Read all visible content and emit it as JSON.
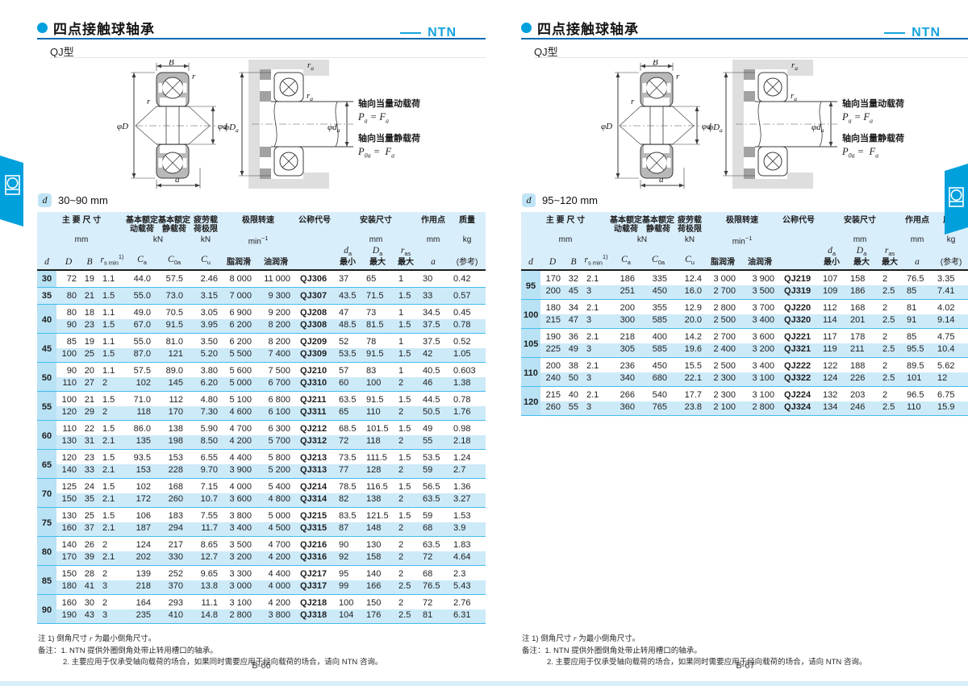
{
  "brand": "NTN",
  "shared": {
    "title": "四点接触球轴承",
    "subtitle": "QJ型",
    "load": {
      "dyn_title": "轴向当量动载荷",
      "stat_title": "轴向当量静载荷",
      "p": "P",
      "f": "F",
      "eq": "=",
      "a_sub": "a",
      "zero_a_sub": "0a"
    },
    "fig_labels": {
      "width": "B",
      "radius": "r",
      "outer": "φD",
      "bore": "φd",
      "action": "a",
      "ra_base": "r",
      "Da_base": "φD",
      "da_base": "φd",
      "sub_a": "a"
    },
    "d_badge": "d",
    "header": {
      "main_dims": "主 要 尺 寸",
      "dyn1": "基本额定",
      "dyn2": "动载荷",
      "stat1": "基本额定",
      "stat2": "静载荷",
      "fat1": "疲劳载",
      "fat2": "荷极限",
      "speed": "极限转速",
      "code": "公称代号",
      "mount": "安装尺寸",
      "point": "作用点",
      "mass": "质量",
      "mm": "mm",
      "kn": "kN",
      "kg": "kg",
      "min_base": "min",
      "min_sup": "−1",
      "grease": "脂润滑",
      "oil": "油润滑",
      "min": "最小",
      "max": "最大",
      "ref": "(参考)",
      "sym": {
        "d": "d",
        "D": "D",
        "B": "B",
        "r": "r",
        "smin": "s min",
        "sup1": "1)",
        "C": "C",
        "a": "a",
        "oa": "0a",
        "u": "u",
        "as": "as"
      }
    },
    "notes": {
      "note1_pre": "注 1) 倒角尺寸 ",
      "note1_sym": "r",
      "note1_post": " 为最小倒角尺寸。",
      "remark1": "备注：1. NTN 提供外圈倒角处带止转用槽口的轴承。",
      "remark2": "2. 主要应用于仅承受轴向载荷的场合，如果同时需要应用于经向载荷的场合，请向 NTN 咨询。"
    }
  },
  "pages": [
    {
      "range": "30~90 mm",
      "page_number": "B-66",
      "groups": [
        {
          "d": "30",
          "rows": [
            [
              "72",
              "19",
              "1.1",
              "44.0",
              "57.5",
              "2.46",
              "8 000",
              "11 000",
              "QJ306",
              "37",
              "65",
              "1",
              "30",
              "0.42"
            ]
          ]
        },
        {
          "d": "35",
          "rows": [
            [
              "80",
              "21",
              "1.5",
              "55.0",
              "73.0",
              "3.15",
              "7 000",
              "9 300",
              "QJ307",
              "43.5",
              "71.5",
              "1.5",
              "33",
              "0.57"
            ]
          ]
        },
        {
          "d": "40",
          "rows": [
            [
              "80",
              "18",
              "1.1",
              "49.0",
              "70.5",
              "3.05",
              "6 900",
              "9 200",
              "QJ208",
              "47",
              "73",
              "1",
              "34.5",
              "0.45"
            ],
            [
              "90",
              "23",
              "1.5",
              "67.0",
              "91.5",
              "3.95",
              "6 200",
              "8 200",
              "QJ308",
              "48.5",
              "81.5",
              "1.5",
              "37.5",
              "0.78"
            ]
          ]
        },
        {
          "d": "45",
          "rows": [
            [
              "85",
              "19",
              "1.1",
              "55.0",
              "81.0",
              "3.50",
              "6 200",
              "8 200",
              "QJ209",
              "52",
              "78",
              "1",
              "37.5",
              "0.52"
            ],
            [
              "100",
              "25",
              "1.5",
              "87.0",
              "121",
              "5.20",
              "5 500",
              "7 400",
              "QJ309",
              "53.5",
              "91.5",
              "1.5",
              "42",
              "1.05"
            ]
          ]
        },
        {
          "d": "50",
          "rows": [
            [
              "90",
              "20",
              "1.1",
              "57.5",
              "89.0",
              "3.80",
              "5 600",
              "7 500",
              "QJ210",
              "57",
              "83",
              "1",
              "40.5",
              "0.603"
            ],
            [
              "110",
              "27",
              "2",
              "102",
              "145",
              "6.20",
              "5 000",
              "6 700",
              "QJ310",
              "60",
              "100",
              "2",
              "46",
              "1.38"
            ]
          ]
        },
        {
          "d": "55",
          "rows": [
            [
              "100",
              "21",
              "1.5",
              "71.0",
              "112",
              "4.80",
              "5 100",
              "6 800",
              "QJ211",
              "63.5",
              "91.5",
              "1.5",
              "44.5",
              "0.78"
            ],
            [
              "120",
              "29",
              "2",
              "118",
              "170",
              "7.30",
              "4 600",
              "6 100",
              "QJ311",
              "65",
              "110",
              "2",
              "50.5",
              "1.76"
            ]
          ]
        },
        {
          "d": "60",
          "rows": [
            [
              "110",
              "22",
              "1.5",
              "86.0",
              "138",
              "5.90",
              "4 700",
              "6 300",
              "QJ212",
              "68.5",
              "101.5",
              "1.5",
              "49",
              "0.98"
            ],
            [
              "130",
              "31",
              "2.1",
              "135",
              "198",
              "8.50",
              "4 200",
              "5 700",
              "QJ312",
              "72",
              "118",
              "2",
              "55",
              "2.18"
            ]
          ]
        },
        {
          "d": "65",
          "rows": [
            [
              "120",
              "23",
              "1.5",
              "93.5",
              "153",
              "6.55",
              "4 400",
              "5 800",
              "QJ213",
              "73.5",
              "111.5",
              "1.5",
              "53.5",
              "1.24"
            ],
            [
              "140",
              "33",
              "2.1",
              "153",
              "228",
              "9.70",
              "3 900",
              "5 200",
              "QJ313",
              "77",
              "128",
              "2",
              "59",
              "2.7"
            ]
          ]
        },
        {
          "d": "70",
          "rows": [
            [
              "125",
              "24",
              "1.5",
              "102",
              "168",
              "7.15",
              "4 000",
              "5 400",
              "QJ214",
              "78.5",
              "116.5",
              "1.5",
              "56.5",
              "1.36"
            ],
            [
              "150",
              "35",
              "2.1",
              "172",
              "260",
              "10.7",
              "3 600",
              "4 800",
              "QJ314",
              "82",
              "138",
              "2",
              "63.5",
              "3.27"
            ]
          ]
        },
        {
          "d": "75",
          "rows": [
            [
              "130",
              "25",
              "1.5",
              "106",
              "183",
              "7.55",
              "3 800",
              "5 000",
              "QJ215",
              "83.5",
              "121.5",
              "1.5",
              "59",
              "1.53"
            ],
            [
              "160",
              "37",
              "2.1",
              "187",
              "294",
              "11.7",
              "3 400",
              "4 500",
              "QJ315",
              "87",
              "148",
              "2",
              "68",
              "3.9"
            ]
          ]
        },
        {
          "d": "80",
          "rows": [
            [
              "140",
              "26",
              "2",
              "124",
              "217",
              "8.65",
              "3 500",
              "4 700",
              "QJ216",
              "90",
              "130",
              "2",
              "63.5",
              "1.83"
            ],
            [
              "170",
              "39",
              "2.1",
              "202",
              "330",
              "12.7",
              "3 200",
              "4 200",
              "QJ316",
              "92",
              "158",
              "2",
              "72",
              "4.64"
            ]
          ]
        },
        {
          "d": "85",
          "rows": [
            [
              "150",
              "28",
              "2",
              "139",
              "252",
              "9.65",
              "3 300",
              "4 400",
              "QJ217",
              "95",
              "140",
              "2",
              "68",
              "2.3"
            ],
            [
              "180",
              "41",
              "3",
              "218",
              "370",
              "13.8",
              "3 000",
              "4 000",
              "QJ317",
              "99",
              "166",
              "2.5",
              "76.5",
              "5.43"
            ]
          ]
        },
        {
          "d": "90",
          "rows": [
            [
              "160",
              "30",
              "2",
              "164",
              "293",
              "11.1",
              "3 100",
              "4 200",
              "QJ218",
              "100",
              "150",
              "2",
              "72",
              "2.76"
            ],
            [
              "190",
              "43",
              "3",
              "235",
              "410",
              "14.8",
              "2 800",
              "3 800",
              "QJ318",
              "104",
              "176",
              "2.5",
              "81",
              "6.31"
            ]
          ]
        }
      ]
    },
    {
      "range": "95~120 mm",
      "page_number": "B-67",
      "groups": [
        {
          "d": "95",
          "rows": [
            [
              "170",
              "32",
              "2.1",
              "186",
              "335",
              "12.4",
              "3 000",
              "3 900",
              "QJ219",
              "107",
              "158",
              "2",
              "76.5",
              "3.35"
            ],
            [
              "200",
              "45",
              "3",
              "251",
              "450",
              "16.0",
              "2 700",
              "3 500",
              "QJ319",
              "109",
              "186",
              "2.5",
              "85",
              "7.41"
            ]
          ]
        },
        {
          "d": "100",
          "rows": [
            [
              "180",
              "34",
              "2.1",
              "200",
              "355",
              "12.9",
              "2 800",
              "3 700",
              "QJ220",
              "112",
              "168",
              "2",
              "81",
              "4.02"
            ],
            [
              "215",
              "47",
              "3",
              "300",
              "585",
              "20.0",
              "2 500",
              "3 400",
              "QJ320",
              "114",
              "201",
              "2.5",
              "91",
              "9.14"
            ]
          ]
        },
        {
          "d": "105",
          "rows": [
            [
              "190",
              "36",
              "2.1",
              "218",
              "400",
              "14.2",
              "2 700",
              "3 600",
              "QJ221",
              "117",
              "178",
              "2",
              "85",
              "4.75"
            ],
            [
              "225",
              "49",
              "3",
              "305",
              "585",
              "19.6",
              "2 400",
              "3 200",
              "QJ321",
              "119",
              "211",
              "2.5",
              "95.5",
              "10.4"
            ]
          ]
        },
        {
          "d": "110",
          "rows": [
            [
              "200",
              "38",
              "2.1",
              "236",
              "450",
              "15.5",
              "2 500",
              "3 400",
              "QJ222",
              "122",
              "188",
              "2",
              "89.5",
              "5.62"
            ],
            [
              "240",
              "50",
              "3",
              "340",
              "680",
              "22.1",
              "2 300",
              "3 100",
              "QJ322",
              "124",
              "226",
              "2.5",
              "101",
              "12"
            ]
          ]
        },
        {
          "d": "120",
          "rows": [
            [
              "215",
              "40",
              "2.1",
              "266",
              "540",
              "17.7",
              "2 300",
              "3 100",
              "QJ224",
              "132",
              "203",
              "2",
              "96.5",
              "6.75"
            ],
            [
              "260",
              "55",
              "3",
              "360",
              "765",
              "23.8",
              "2 100",
              "2 800",
              "QJ324",
              "134",
              "246",
              "2.5",
              "110",
              "15.9"
            ]
          ]
        }
      ]
    }
  ]
}
